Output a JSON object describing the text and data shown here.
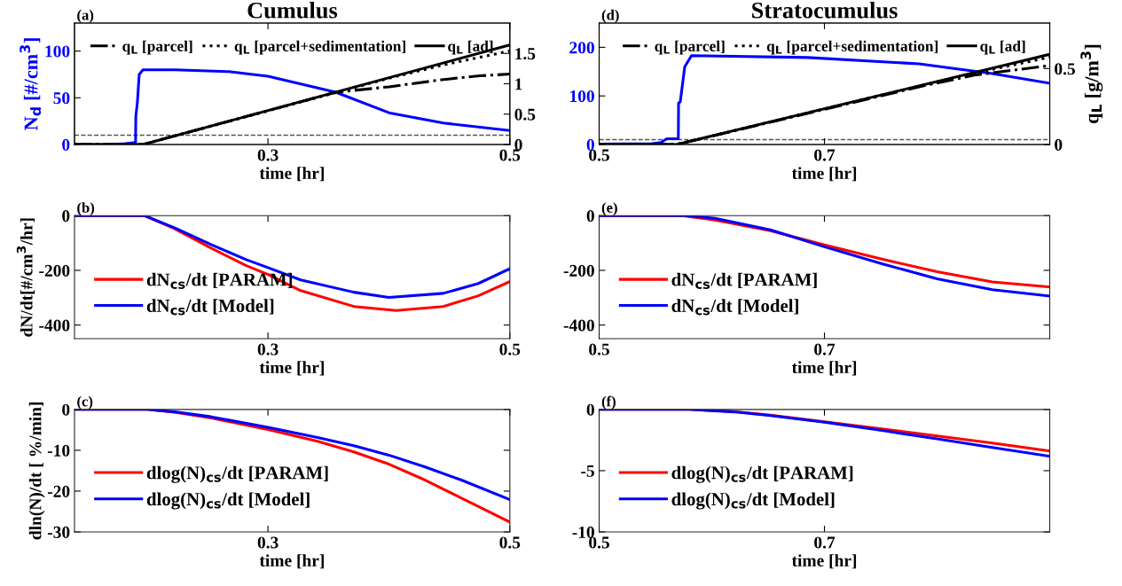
{
  "chart_data": [
    {
      "type": "line",
      "title": "Cumulus",
      "xlabel": "time [hr]",
      "ylabel": "N$_{d}$ [#/cm$^{3}$]",
      "annotations": [
        "(a)"
      ],
      "xlim": [
        0.14,
        0.5
      ],
      "xticks": [
        0.3,
        0.5
      ],
      "ylim": [
        0,
        130
      ],
      "yticks": [
        0,
        50,
        100
      ],
      "y2lim": [
        0,
        2
      ],
      "y2ticks": [
        0,
        0.5,
        1,
        1.5
      ],
      "legend": "top",
      "grid": false,
      "ref_lines": [
        {
          "axis": "y",
          "value": 10,
          "color": "#555555",
          "line_style": "dashed"
        }
      ],
      "series": [
        {
          "color": "#0000ff",
          "x": [
            0.14,
            0.17,
            0.182,
            0.189,
            0.1905,
            0.1907,
            0.192,
            0.1935,
            0.1966,
            0.223,
            0.2675,
            0.3,
            0.356,
            0.4,
            0.445,
            0.5
          ],
          "values": [
            0,
            0,
            1,
            2,
            2,
            30,
            45,
            75,
            80,
            80,
            78,
            73,
            56,
            34,
            23,
            15
          ]
        },
        {
          "name": "q$_{L}$ [parcel]",
          "color": "#000000",
          "line_style": "dashdot",
          "axis": "y2",
          "x": [
            0.14,
            0.1966,
            0.33,
            0.356,
            0.4,
            0.445,
            0.475,
            0.5
          ],
          "values": [
            0,
            0,
            0.72,
            0.86,
            0.95,
            1.07,
            1.13,
            1.16
          ]
        },
        {
          "name": "q$_{L}$ [parcel+sedimentation]",
          "color": "#000000",
          "line_style": "dotted",
          "axis": "y2",
          "x": [
            0.14,
            0.1966,
            0.4,
            0.445,
            0.5
          ],
          "values": [
            0,
            0,
            1.09,
            1.31,
            1.54
          ]
        },
        {
          "name": "q$_{L}$ [ad]",
          "color": "#000000",
          "line_style": "solid",
          "axis": "y2",
          "x": [
            0.14,
            0.1966,
            0.5
          ],
          "values": [
            0,
            0,
            1.64
          ]
        }
      ]
    },
    {
      "type": "line",
      "title": "Stratocumulus",
      "xlabel": "time [hr]",
      "y2label": "q$_{L}$ [g/m$^{3}$]",
      "annotations": [
        "(d)"
      ],
      "xlim": [
        0.5,
        0.9
      ],
      "xticks": [
        0.5,
        0.7
      ],
      "ylim": [
        0,
        250
      ],
      "yticks": [
        0,
        100,
        200
      ],
      "y2lim": [
        0,
        0.8
      ],
      "y2ticks": [
        0,
        0.5
      ],
      "legend": "top",
      "grid": false,
      "ref_lines": [
        {
          "axis": "y",
          "value": 10,
          "color": "#555555",
          "line_style": "dashed"
        }
      ],
      "series": [
        {
          "color": "#0000ff",
          "x": [
            0.5,
            0.547,
            0.555,
            0.56,
            0.5703,
            0.5705,
            0.572,
            0.576,
            0.582,
            0.685,
            0.784,
            0.849,
            0.9
          ],
          "values": [
            1,
            2,
            4,
            12,
            12,
            85,
            88,
            160,
            183,
            179,
            166,
            146,
            126
          ]
        },
        {
          "name": "q$_{L}$ [parcel]",
          "color": "#000000",
          "line_style": "dashdot",
          "axis": "y2",
          "x": [
            0.5,
            0.5686,
            0.784,
            0.833,
            0.9
          ],
          "values": [
            0,
            0,
            0.38,
            0.457,
            0.52
          ]
        },
        {
          "name": "q$_{L}$ [parcel+sedimentation]",
          "color": "#000000",
          "line_style": "dotted",
          "axis": "y2",
          "x": [
            0.5,
            0.5686,
            0.784,
            0.833,
            0.9
          ],
          "values": [
            0,
            0,
            0.385,
            0.47,
            0.575
          ]
        },
        {
          "name": "q$_{L}$ [ad]",
          "color": "#000000",
          "line_style": "solid",
          "axis": "y2",
          "x": [
            0.5,
            0.5686,
            0.9
          ],
          "values": [
            0,
            0,
            0.594
          ]
        }
      ]
    },
    {
      "type": "line",
      "xlabel": "time [hr]",
      "ylabel": "dN/dt[#/cm$^{3}$/hr]",
      "annotations": [
        "(b)"
      ],
      "xlim": [
        0.14,
        0.5
      ],
      "xticks": [
        0.3,
        0.5
      ],
      "ylim": [
        -450,
        0
      ],
      "yticks": [
        -400,
        -200,
        0
      ],
      "legend": "left",
      "grid": false,
      "series": [
        {
          "name": "dN$_{cs}$/dt [PARAM]",
          "color": "#ff0000",
          "x": [
            0.14,
            0.198,
            0.223,
            0.253,
            0.282,
            0.3,
            0.327,
            0.371,
            0.406,
            0.445,
            0.474,
            0.5
          ],
          "values": [
            0,
            0,
            -48,
            -119,
            -183,
            -215,
            -274,
            -332,
            -347,
            -332,
            -293,
            -241
          ]
        },
        {
          "name": "dN$_{cs}$/dt [Model]",
          "color": "#0000ff",
          "x": [
            0.14,
            0.198,
            0.223,
            0.253,
            0.282,
            0.3,
            0.327,
            0.371,
            0.4,
            0.445,
            0.474,
            0.5
          ],
          "values": [
            0,
            0,
            -45,
            -106,
            -161,
            -190,
            -235,
            -280,
            -299,
            -284,
            -248,
            -194
          ]
        }
      ]
    },
    {
      "type": "line",
      "xlabel": "time [hr]",
      "annotations": [
        "(e)"
      ],
      "xlim": [
        0.5,
        0.9
      ],
      "xticks": [
        0.5,
        0.7
      ],
      "ylim": [
        -450,
        0
      ],
      "yticks": [
        -400,
        -200,
        0
      ],
      "legend": "left",
      "grid": false,
      "series": [
        {
          "name": "dN$_{cs}$/dt [PARAM]",
          "color": "#ff0000",
          "x": [
            0.5,
            0.5736,
            0.603,
            0.652,
            0.7,
            0.751,
            0.8,
            0.849,
            0.9
          ],
          "values": [
            0,
            0,
            -16,
            -55,
            -107,
            -159,
            -205,
            -242,
            -261
          ]
        },
        {
          "name": "dN$_{cs}$/dt [Model]",
          "color": "#0000ff",
          "x": [
            0.5,
            0.577,
            0.603,
            0.652,
            0.7,
            0.751,
            0.8,
            0.849,
            0.9
          ],
          "values": [
            0,
            0,
            -10,
            -52,
            -114,
            -176,
            -231,
            -271,
            -294
          ]
        }
      ]
    },
    {
      "type": "line",
      "xlabel": "time [hr]",
      "ylabel": "dln(N)/dt [ %/min]",
      "annotations": [
        "(c)"
      ],
      "xlim": [
        0.14,
        0.5
      ],
      "xticks": [
        0.3,
        0.5
      ],
      "ylim": [
        -30,
        0
      ],
      "yticks": [
        -30,
        -20,
        -10,
        0
      ],
      "legend": "left",
      "grid": false,
      "series": [
        {
          "name": "dlog(N)$_{cs}$/dt [PARAM]",
          "color": "#ff0000",
          "x": [
            0.14,
            0.2,
            0.223,
            0.253,
            0.3,
            0.341,
            0.371,
            0.4,
            0.43,
            0.46,
            0.5
          ],
          "values": [
            0,
            0,
            -0.7,
            -2.1,
            -4.9,
            -7.8,
            -10.4,
            -13.4,
            -17.3,
            -21.7,
            -27.6
          ]
        },
        {
          "name": "dlog(N)$_{cs}$/dt [Model]",
          "color": "#0000ff",
          "x": [
            0.14,
            0.2,
            0.223,
            0.253,
            0.3,
            0.341,
            0.371,
            0.4,
            0.43,
            0.46,
            0.5
          ],
          "values": [
            0,
            0,
            -0.6,
            -1.8,
            -4.4,
            -6.9,
            -8.9,
            -11.2,
            -14.1,
            -17.3,
            -22.1
          ]
        }
      ]
    },
    {
      "type": "line",
      "xlabel": "time [hr]",
      "annotations": [
        "(f)"
      ],
      "xlim": [
        0.5,
        0.9
      ],
      "xticks": [
        0.5,
        0.7
      ],
      "ylim": [
        -10,
        0
      ],
      "yticks": [
        -10,
        -5,
        0
      ],
      "legend": "left",
      "grid": false,
      "series": [
        {
          "name": "dlog(N)$_{cs}$/dt [PARAM]",
          "color": "#ff0000",
          "x": [
            0.5,
            0.58,
            0.6195,
            0.652,
            0.7,
            0.751,
            0.8,
            0.849,
            0.9
          ],
          "values": [
            0,
            0,
            -0.18,
            -0.47,
            -1.0,
            -1.58,
            -2.16,
            -2.75,
            -3.39
          ]
        },
        {
          "name": "dlog(N)$_{cs}$/dt [Model]",
          "color": "#0000ff",
          "x": [
            0.5,
            0.58,
            0.6195,
            0.652,
            0.7,
            0.751,
            0.8,
            0.849,
            0.9
          ],
          "values": [
            0,
            0,
            -0.2,
            -0.5,
            -1.05,
            -1.72,
            -2.4,
            -3.1,
            -3.83
          ]
        }
      ]
    }
  ]
}
